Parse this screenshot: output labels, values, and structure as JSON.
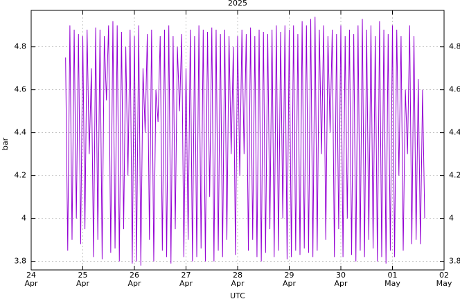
{
  "chart_data": {
    "type": "line",
    "title": "2025",
    "xlabel": "UTC",
    "ylabel": "bar",
    "color": "#9400d3",
    "grid": true,
    "xlim": [
      "2025-04-24",
      "2025-05-02"
    ],
    "xticks": [
      {
        "value": "2025-04-24",
        "label": [
          "24",
          "Apr"
        ]
      },
      {
        "value": "2025-04-25",
        "label": [
          "25",
          "Apr"
        ]
      },
      {
        "value": "2025-04-26",
        "label": [
          "26",
          "Apr"
        ]
      },
      {
        "value": "2025-04-27",
        "label": [
          "27",
          "Apr"
        ]
      },
      {
        "value": "2025-04-28",
        "label": [
          "28",
          "Apr"
        ]
      },
      {
        "value": "2025-04-29",
        "label": [
          "29",
          "Apr"
        ]
      },
      {
        "value": "2025-04-30",
        "label": [
          "30",
          "Apr"
        ]
      },
      {
        "value": "2025-05-01",
        "label": [
          "01",
          "May"
        ]
      },
      {
        "value": "2025-05-02",
        "label": [
          "02",
          "May"
        ]
      }
    ],
    "ylim": [
      3.76,
      4.97
    ],
    "yticks": [
      3.8,
      4,
      4.2,
      4.4,
      4.6,
      4.8
    ],
    "x": [
      "2025-04-24 16:00",
      "2025-04-24 17:00",
      "2025-04-24 18:00",
      "2025-04-24 19:00",
      "2025-04-24 20:00",
      "2025-04-24 21:00",
      "2025-04-24 22:00",
      "2025-04-24 23:00",
      "2025-04-25 00:00",
      "2025-04-25 01:00",
      "2025-04-25 02:00",
      "2025-04-25 03:00",
      "2025-04-25 04:00",
      "2025-04-25 05:00",
      "2025-04-25 06:00",
      "2025-04-25 07:00",
      "2025-04-25 08:00",
      "2025-04-25 09:00",
      "2025-04-25 10:00",
      "2025-04-25 11:00",
      "2025-04-25 12:00",
      "2025-04-25 13:00",
      "2025-04-25 14:00",
      "2025-04-25 15:00",
      "2025-04-25 16:00",
      "2025-04-25 17:00",
      "2025-04-25 18:00",
      "2025-04-25 19:00",
      "2025-04-25 20:00",
      "2025-04-25 21:00",
      "2025-04-25 22:00",
      "2025-04-25 23:00",
      "2025-04-26 00:00",
      "2025-04-26 01:00",
      "2025-04-26 02:00",
      "2025-04-26 03:00",
      "2025-04-26 04:00",
      "2025-04-26 05:00",
      "2025-04-26 06:00",
      "2025-04-26 07:00",
      "2025-04-26 08:00",
      "2025-04-26 09:00",
      "2025-04-26 10:00",
      "2025-04-26 11:00",
      "2025-04-26 12:00",
      "2025-04-26 13:00",
      "2025-04-26 14:00",
      "2025-04-26 15:00",
      "2025-04-26 16:00",
      "2025-04-26 17:00",
      "2025-04-26 18:00",
      "2025-04-26 19:00",
      "2025-04-26 20:00",
      "2025-04-26 21:00",
      "2025-04-26 22:00",
      "2025-04-26 23:00",
      "2025-04-27 00:00",
      "2025-04-27 01:00",
      "2025-04-27 02:00",
      "2025-04-27 03:00",
      "2025-04-27 04:00",
      "2025-04-27 05:00",
      "2025-04-27 06:00",
      "2025-04-27 07:00",
      "2025-04-27 08:00",
      "2025-04-27 09:00",
      "2025-04-27 10:00",
      "2025-04-27 11:00",
      "2025-04-27 12:00",
      "2025-04-27 13:00",
      "2025-04-27 14:00",
      "2025-04-27 15:00",
      "2025-04-27 16:00",
      "2025-04-27 17:00",
      "2025-04-27 18:00",
      "2025-04-27 19:00",
      "2025-04-27 20:00",
      "2025-04-27 21:00",
      "2025-04-27 22:00",
      "2025-04-27 23:00",
      "2025-04-28 00:00",
      "2025-04-28 01:00",
      "2025-04-28 02:00",
      "2025-04-28 03:00",
      "2025-04-28 04:00",
      "2025-04-28 05:00",
      "2025-04-28 06:00",
      "2025-04-28 07:00",
      "2025-04-28 08:00",
      "2025-04-28 09:00",
      "2025-04-28 10:00",
      "2025-04-28 11:00",
      "2025-04-28 12:00",
      "2025-04-28 13:00",
      "2025-04-28 14:00",
      "2025-04-28 15:00",
      "2025-04-28 16:00",
      "2025-04-28 17:00",
      "2025-04-28 18:00",
      "2025-04-28 19:00",
      "2025-04-28 20:00",
      "2025-04-28 21:00",
      "2025-04-28 22:00",
      "2025-04-28 23:00",
      "2025-04-29 00:00",
      "2025-04-29 01:00",
      "2025-04-29 02:00",
      "2025-04-29 03:00",
      "2025-04-29 04:00",
      "2025-04-29 05:00",
      "2025-04-29 06:00",
      "2025-04-29 07:00",
      "2025-04-29 08:00",
      "2025-04-29 09:00",
      "2025-04-29 10:00",
      "2025-04-29 11:00",
      "2025-04-29 12:00",
      "2025-04-29 13:00",
      "2025-04-29 14:00",
      "2025-04-29 15:00",
      "2025-04-29 16:00",
      "2025-04-29 17:00",
      "2025-04-29 18:00",
      "2025-04-29 19:00",
      "2025-04-29 20:00",
      "2025-04-29 21:00",
      "2025-04-29 22:00",
      "2025-04-29 23:00",
      "2025-04-30 00:00",
      "2025-04-30 01:00",
      "2025-04-30 02:00",
      "2025-04-30 03:00",
      "2025-04-30 04:00",
      "2025-04-30 05:00",
      "2025-04-30 06:00",
      "2025-04-30 07:00",
      "2025-04-30 08:00",
      "2025-04-30 09:00",
      "2025-04-30 10:00",
      "2025-04-30 11:00",
      "2025-04-30 12:00",
      "2025-04-30 13:00",
      "2025-04-30 14:00",
      "2025-04-30 15:00",
      "2025-04-30 16:00",
      "2025-04-30 17:00",
      "2025-04-30 18:00",
      "2025-04-30 19:00",
      "2025-04-30 20:00",
      "2025-04-30 21:00",
      "2025-04-30 22:00",
      "2025-04-30 23:00",
      "2025-05-01 00:00",
      "2025-05-01 01:00",
      "2025-05-01 02:00",
      "2025-05-01 03:00",
      "2025-05-01 04:00",
      "2025-05-01 05:00",
      "2025-05-01 06:00",
      "2025-05-01 07:00",
      "2025-05-01 08:00",
      "2025-05-01 09:00",
      "2025-05-01 10:00",
      "2025-05-01 11:00",
      "2025-05-01 12:00",
      "2025-05-01 13:00",
      "2025-05-01 14:00",
      "2025-05-01 15:00"
    ],
    "values": [
      4.75,
      3.85,
      4.9,
      3.9,
      4.88,
      4.0,
      4.86,
      3.88,
      4.85,
      3.95,
      4.88,
      4.3,
      4.7,
      3.82,
      4.89,
      3.9,
      4.88,
      3.81,
      4.85,
      4.55,
      4.9,
      3.84,
      4.92,
      3.86,
      4.9,
      3.8,
      4.87,
      3.95,
      4.8,
      4.2,
      4.88,
      3.79,
      4.85,
      3.8,
      4.9,
      3.78,
      4.7,
      4.4,
      4.86,
      3.9,
      4.88,
      3.8,
      4.6,
      4.45,
      4.85,
      3.85,
      4.88,
      3.82,
      4.9,
      3.79,
      4.85,
      3.95,
      4.8,
      4.5,
      4.86,
      3.82,
      4.7,
      3.9,
      4.88,
      3.8,
      4.85,
      3.82,
      4.9,
      3.86,
      4.88,
      3.8,
      4.87,
      4.1,
      4.89,
      3.8,
      4.88,
      3.85,
      4.86,
      3.82,
      4.88,
      3.9,
      4.85,
      4.3,
      4.8,
      3.83,
      4.85,
      4.2,
      4.88,
      4.3,
      4.86,
      3.85,
      4.89,
      3.9,
      4.85,
      3.82,
      4.88,
      3.8,
      4.87,
      3.84,
      4.86,
      3.95,
      4.88,
      3.82,
      4.9,
      3.85,
      4.87,
      4.0,
      4.9,
      3.81,
      4.88,
      3.82,
      4.9,
      3.85,
      4.86,
      3.83,
      4.92,
      3.86,
      4.9,
      3.84,
      4.93,
      3.82,
      4.94,
      3.85,
      4.88,
      4.3,
      4.9,
      3.9,
      4.85,
      4.4,
      4.88,
      3.82,
      4.86,
      3.95,
      4.9,
      3.82,
      4.85,
      4.0,
      4.88,
      3.83,
      4.86,
      3.8,
      4.9,
      3.85,
      4.93,
      3.82,
      4.88,
      3.9,
      4.9,
      3.86,
      4.85,
      3.8,
      4.92,
      3.82,
      4.88,
      3.79,
      4.86,
      3.85,
      4.9,
      3.82,
      4.88,
      4.2,
      4.85,
      3.85,
      4.6,
      4.3,
      4.9,
      3.88,
      4.85,
      3.9,
      4.65,
      3.88,
      4.6,
      4.0
    ]
  }
}
